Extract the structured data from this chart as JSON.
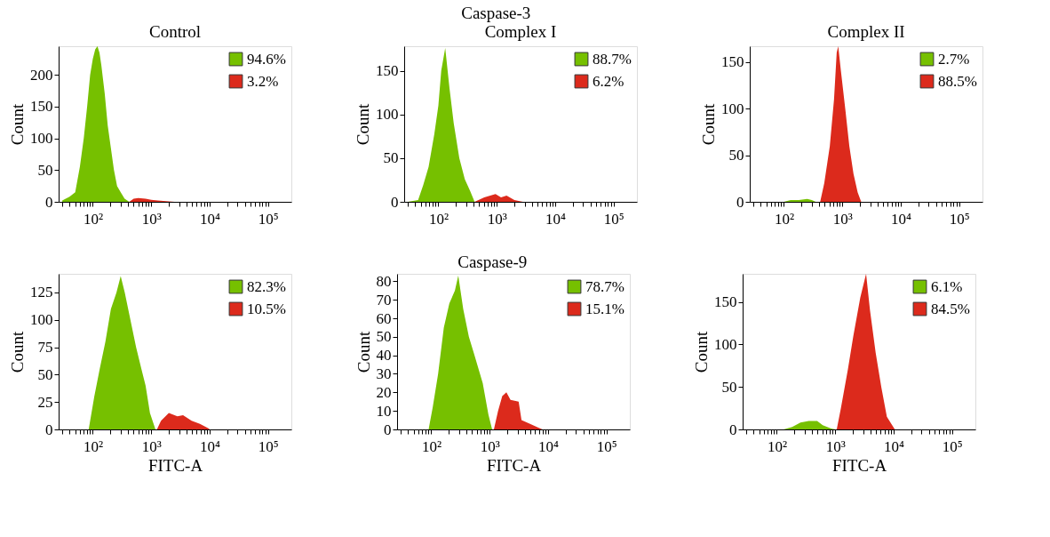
{
  "chart_data": [
    {
      "type": "area",
      "title": "Control",
      "ylabel": "Count",
      "log": "x",
      "legend": "top right",
      "xlim": [
        26,
        250000
      ],
      "ylim": [
        0,
        245
      ],
      "yticks": [
        0,
        50,
        100,
        150,
        200
      ],
      "xticks": [
        {
          "value": 30,
          "label": null
        },
        {
          "value": 40,
          "label": null
        },
        {
          "value": 50,
          "label": null
        },
        {
          "value": 60,
          "label": null
        },
        {
          "value": 70,
          "label": null
        },
        {
          "value": 80,
          "label": null
        },
        {
          "value": 90,
          "label": null
        },
        {
          "value": 100,
          "label": "10²"
        },
        {
          "value": 200,
          "label": null
        },
        {
          "value": 300,
          "label": null
        },
        {
          "value": 400,
          "label": null
        },
        {
          "value": 500,
          "label": null
        },
        {
          "value": 600,
          "label": null
        },
        {
          "value": 700,
          "label": null
        },
        {
          "value": 800,
          "label": null
        },
        {
          "value": 900,
          "label": null
        },
        {
          "value": 1000,
          "label": "10³"
        },
        {
          "value": 2000,
          "label": null
        },
        {
          "value": 3000,
          "label": null
        },
        {
          "value": 4000,
          "label": null
        },
        {
          "value": 5000,
          "label": null
        },
        {
          "value": 6000,
          "label": null
        },
        {
          "value": 7000,
          "label": null
        },
        {
          "value": 8000,
          "label": null
        },
        {
          "value": 9000,
          "label": null
        },
        {
          "value": 10000,
          "label": "10⁴"
        },
        {
          "value": 20000,
          "label": null
        },
        {
          "value": 30000,
          "label": null
        },
        {
          "value": 40000,
          "label": null
        },
        {
          "value": 50000,
          "label": null
        },
        {
          "value": 60000,
          "label": null
        },
        {
          "value": 70000,
          "label": null
        },
        {
          "value": 80000,
          "label": null
        },
        {
          "value": 90000,
          "label": null
        },
        {
          "value": 100000,
          "label": "10⁵"
        }
      ],
      "series": [
        {
          "name": "94.6%",
          "color": "#76c000",
          "x": [
            30,
            40,
            50,
            60,
            70,
            80,
            90,
            100,
            110,
            120,
            130,
            140,
            160,
            180,
            200,
            230,
            260,
            300,
            350,
            420
          ],
          "values": [
            2,
            8,
            15,
            55,
            100,
            150,
            200,
            225,
            240,
            245,
            235,
            215,
            170,
            120,
            90,
            50,
            25,
            15,
            5,
            0
          ]
        },
        {
          "name": "3.2%",
          "color": "#dc2a1c",
          "x": [
            420,
            500,
            600,
            800,
            1000,
            1300,
            1800,
            2500
          ],
          "values": [
            0,
            5,
            6,
            5,
            3,
            2,
            1,
            0
          ]
        }
      ]
    },
    {
      "type": "area",
      "title": "Caspase-3",
      "subtitle": "Complex I",
      "ylabel": "Count",
      "log": "x",
      "legend": "top right",
      "xlim": [
        26,
        250000
      ],
      "ylim": [
        0,
        178
      ],
      "yticks": [
        0,
        50,
        100,
        150
      ],
      "xticks": [
        {
          "value": 30,
          "label": null
        },
        {
          "value": 40,
          "label": null
        },
        {
          "value": 50,
          "label": null
        },
        {
          "value": 60,
          "label": null
        },
        {
          "value": 70,
          "label": null
        },
        {
          "value": 80,
          "label": null
        },
        {
          "value": 90,
          "label": null
        },
        {
          "value": 100,
          "label": "10²"
        },
        {
          "value": 200,
          "label": null
        },
        {
          "value": 300,
          "label": null
        },
        {
          "value": 400,
          "label": null
        },
        {
          "value": 500,
          "label": null
        },
        {
          "value": 600,
          "label": null
        },
        {
          "value": 700,
          "label": null
        },
        {
          "value": 800,
          "label": null
        },
        {
          "value": 900,
          "label": null
        },
        {
          "value": 1000,
          "label": "10³"
        },
        {
          "value": 2000,
          "label": null
        },
        {
          "value": 3000,
          "label": null
        },
        {
          "value": 4000,
          "label": null
        },
        {
          "value": 5000,
          "label": null
        },
        {
          "value": 6000,
          "label": null
        },
        {
          "value": 7000,
          "label": null
        },
        {
          "value": 8000,
          "label": null
        },
        {
          "value": 9000,
          "label": null
        },
        {
          "value": 10000,
          "label": "10⁴"
        },
        {
          "value": 20000,
          "label": null
        },
        {
          "value": 30000,
          "label": null
        },
        {
          "value": 40000,
          "label": null
        },
        {
          "value": 50000,
          "label": null
        },
        {
          "value": 60000,
          "label": null
        },
        {
          "value": 70000,
          "label": null
        },
        {
          "value": 80000,
          "label": null
        },
        {
          "value": 90000,
          "label": null
        },
        {
          "value": 100000,
          "label": "10⁵"
        }
      ],
      "series": [
        {
          "name": "88.7%",
          "color": "#76c000",
          "x": [
            30,
            45,
            55,
            68,
            85,
            100,
            112,
            131,
            155,
            183,
            228,
            283,
            352,
            417
          ],
          "values": [
            0,
            2,
            19,
            40,
            77,
            110,
            150,
            176,
            130,
            90,
            50,
            26,
            12,
            0
          ]
        },
        {
          "name": "6.2%",
          "color": "#dc2a1c",
          "x": [
            417,
            610,
            950,
            1180,
            1470,
            2000,
            2800
          ],
          "values": [
            0,
            5,
            9,
            5,
            7,
            2,
            0
          ]
        }
      ]
    },
    {
      "type": "area",
      "title": "Complex II",
      "ylabel": "Count",
      "log": "x",
      "legend": "top right",
      "xlim": [
        26,
        250000
      ],
      "ylim": [
        0,
        167
      ],
      "yticks": [
        0,
        50,
        100,
        150
      ],
      "xticks": [
        {
          "value": 30,
          "label": null
        },
        {
          "value": 40,
          "label": null
        },
        {
          "value": 50,
          "label": null
        },
        {
          "value": 60,
          "label": null
        },
        {
          "value": 70,
          "label": null
        },
        {
          "value": 80,
          "label": null
        },
        {
          "value": 90,
          "label": null
        },
        {
          "value": 100,
          "label": "10²"
        },
        {
          "value": 200,
          "label": null
        },
        {
          "value": 300,
          "label": null
        },
        {
          "value": 400,
          "label": null
        },
        {
          "value": 500,
          "label": null
        },
        {
          "value": 600,
          "label": null
        },
        {
          "value": 700,
          "label": null
        },
        {
          "value": 800,
          "label": null
        },
        {
          "value": 900,
          "label": null
        },
        {
          "value": 1000,
          "label": "10³"
        },
        {
          "value": 2000,
          "label": null
        },
        {
          "value": 3000,
          "label": null
        },
        {
          "value": 4000,
          "label": null
        },
        {
          "value": 5000,
          "label": null
        },
        {
          "value": 6000,
          "label": null
        },
        {
          "value": 7000,
          "label": null
        },
        {
          "value": 8000,
          "label": null
        },
        {
          "value": 9000,
          "label": null
        },
        {
          "value": 10000,
          "label": "10⁴"
        },
        {
          "value": 20000,
          "label": null
        },
        {
          "value": 30000,
          "label": null
        },
        {
          "value": 40000,
          "label": null
        },
        {
          "value": 50000,
          "label": null
        },
        {
          "value": 60000,
          "label": null
        },
        {
          "value": 70000,
          "label": null
        },
        {
          "value": 80000,
          "label": null
        },
        {
          "value": 90000,
          "label": null
        },
        {
          "value": 100000,
          "label": "10⁵"
        }
      ],
      "series": [
        {
          "name": "2.7%",
          "color": "#76c000",
          "x": [
            100,
            130,
            180,
            250,
            300,
            350
          ],
          "values": [
            0,
            2,
            2,
            3,
            2,
            0
          ]
        },
        {
          "name": "88.5%",
          "color": "#dc2a1c",
          "x": [
            417,
            490,
            610,
            720,
            800,
            850,
            946,
            1120,
            1315,
            1550,
            1830,
            2100
          ],
          "values": [
            0,
            20,
            60,
            110,
            160,
            167,
            140,
            100,
            60,
            30,
            10,
            0
          ]
        }
      ]
    },
    {
      "type": "area",
      "ylabel": "Count",
      "xlabel": "FITC-A",
      "log": "x",
      "legend": "top right",
      "xlim": [
        26,
        250000
      ],
      "ylim": [
        0,
        142
      ],
      "yticks": [
        0,
        25,
        50,
        75,
        100,
        125
      ],
      "xticks": [
        {
          "value": 30,
          "label": null
        },
        {
          "value": 40,
          "label": null
        },
        {
          "value": 50,
          "label": null
        },
        {
          "value": 60,
          "label": null
        },
        {
          "value": 70,
          "label": null
        },
        {
          "value": 80,
          "label": null
        },
        {
          "value": 90,
          "label": null
        },
        {
          "value": 100,
          "label": "10²"
        },
        {
          "value": 200,
          "label": null
        },
        {
          "value": 300,
          "label": null
        },
        {
          "value": 400,
          "label": null
        },
        {
          "value": 500,
          "label": null
        },
        {
          "value": 600,
          "label": null
        },
        {
          "value": 700,
          "label": null
        },
        {
          "value": 800,
          "label": null
        },
        {
          "value": 900,
          "label": null
        },
        {
          "value": 1000,
          "label": "10³"
        },
        {
          "value": 2000,
          "label": null
        },
        {
          "value": 3000,
          "label": null
        },
        {
          "value": 4000,
          "label": null
        },
        {
          "value": 5000,
          "label": null
        },
        {
          "value": 6000,
          "label": null
        },
        {
          "value": 7000,
          "label": null
        },
        {
          "value": 8000,
          "label": null
        },
        {
          "value": 9000,
          "label": null
        },
        {
          "value": 10000,
          "label": "10⁴"
        },
        {
          "value": 20000,
          "label": null
        },
        {
          "value": 30000,
          "label": null
        },
        {
          "value": 40000,
          "label": null
        },
        {
          "value": 50000,
          "label": null
        },
        {
          "value": 60000,
          "label": null
        },
        {
          "value": 70000,
          "label": null
        },
        {
          "value": 80000,
          "label": null
        },
        {
          "value": 90000,
          "label": null
        },
        {
          "value": 100000,
          "label": "10⁵"
        }
      ],
      "series": [
        {
          "name": "82.3%",
          "color": "#76c000",
          "x": [
            85,
            106,
            131,
            164,
            204,
            254,
            300,
            352,
            440,
            550,
            680,
            800,
            950,
            1180
          ],
          "values": [
            0,
            30,
            55,
            80,
            110,
            125,
            140,
            125,
            100,
            75,
            55,
            40,
            15,
            0
          ]
        },
        {
          "name": "10.5%",
          "color": "#dc2a1c",
          "x": [
            1250,
            1470,
            2000,
            2800,
            3500,
            4900,
            6800,
            9500,
            10000
          ],
          "values": [
            0,
            8,
            15,
            12,
            13,
            8,
            5,
            1,
            0
          ]
        }
      ]
    },
    {
      "type": "area",
      "title": "Caspase-9",
      "ylabel": "Count",
      "xlabel": "FITC-A",
      "log": "x",
      "legend": "top right",
      "xlim": [
        26,
        250000
      ],
      "ylim": [
        0,
        84
      ],
      "yticks": [
        0,
        10,
        20,
        30,
        40,
        50,
        60,
        70,
        80
      ],
      "xticks": [
        {
          "value": 30,
          "label": null
        },
        {
          "value": 40,
          "label": null
        },
        {
          "value": 50,
          "label": null
        },
        {
          "value": 60,
          "label": null
        },
        {
          "value": 70,
          "label": null
        },
        {
          "value": 80,
          "label": null
        },
        {
          "value": 90,
          "label": null
        },
        {
          "value": 100,
          "label": "10²"
        },
        {
          "value": 200,
          "label": null
        },
        {
          "value": 300,
          "label": null
        },
        {
          "value": 400,
          "label": null
        },
        {
          "value": 500,
          "label": null
        },
        {
          "value": 600,
          "label": null
        },
        {
          "value": 700,
          "label": null
        },
        {
          "value": 800,
          "label": null
        },
        {
          "value": 900,
          "label": null
        },
        {
          "value": 1000,
          "label": "10³"
        },
        {
          "value": 2000,
          "label": null
        },
        {
          "value": 3000,
          "label": null
        },
        {
          "value": 4000,
          "label": null
        },
        {
          "value": 5000,
          "label": null
        },
        {
          "value": 6000,
          "label": null
        },
        {
          "value": 7000,
          "label": null
        },
        {
          "value": 8000,
          "label": null
        },
        {
          "value": 9000,
          "label": null
        },
        {
          "value": 10000,
          "label": "10⁴"
        },
        {
          "value": 20000,
          "label": null
        },
        {
          "value": 30000,
          "label": null
        },
        {
          "value": 40000,
          "label": null
        },
        {
          "value": 50000,
          "label": null
        },
        {
          "value": 60000,
          "label": null
        },
        {
          "value": 70000,
          "label": null
        },
        {
          "value": 80000,
          "label": null
        },
        {
          "value": 90000,
          "label": null
        },
        {
          "value": 100000,
          "label": "10⁵"
        }
      ],
      "series": [
        {
          "name": "78.7%",
          "color": "#76c000",
          "x": [
            90,
            106,
            131,
            164,
            204,
            254,
            290,
            352,
            440,
            550,
            760,
            950,
            1100
          ],
          "values": [
            0,
            12,
            30,
            55,
            68,
            75,
            83,
            65,
            50,
            40,
            25,
            8,
            0
          ]
        },
        {
          "name": "15.1%",
          "color": "#dc2a1c",
          "x": [
            1180,
            1390,
            1640,
            1930,
            2270,
            3130,
            3500,
            4900,
            6800,
            8000
          ],
          "values": [
            0,
            10,
            18,
            20,
            16,
            15,
            5,
            3,
            1,
            0
          ]
        }
      ]
    },
    {
      "type": "area",
      "ylabel": "Count",
      "xlabel": "FITC-A",
      "log": "x",
      "legend": "top right",
      "xlim": [
        26,
        250000
      ],
      "ylim": [
        0,
        183
      ],
      "yticks": [
        0,
        50,
        100,
        150
      ],
      "xticks": [
        {
          "value": 30,
          "label": null
        },
        {
          "value": 40,
          "label": null
        },
        {
          "value": 50,
          "label": null
        },
        {
          "value": 60,
          "label": null
        },
        {
          "value": 70,
          "label": null
        },
        {
          "value": 80,
          "label": null
        },
        {
          "value": 90,
          "label": null
        },
        {
          "value": 100,
          "label": "10²"
        },
        {
          "value": 200,
          "label": null
        },
        {
          "value": 300,
          "label": null
        },
        {
          "value": 400,
          "label": null
        },
        {
          "value": 500,
          "label": null
        },
        {
          "value": 600,
          "label": null
        },
        {
          "value": 700,
          "label": null
        },
        {
          "value": 800,
          "label": null
        },
        {
          "value": 900,
          "label": null
        },
        {
          "value": 1000,
          "label": "10³"
        },
        {
          "value": 2000,
          "label": null
        },
        {
          "value": 3000,
          "label": null
        },
        {
          "value": 4000,
          "label": null
        },
        {
          "value": 5000,
          "label": null
        },
        {
          "value": 6000,
          "label": null
        },
        {
          "value": 7000,
          "label": null
        },
        {
          "value": 8000,
          "label": null
        },
        {
          "value": 9000,
          "label": null
        },
        {
          "value": 10000,
          "label": "10⁴"
        },
        {
          "value": 20000,
          "label": null
        },
        {
          "value": 30000,
          "label": null
        },
        {
          "value": 40000,
          "label": null
        },
        {
          "value": 50000,
          "label": null
        },
        {
          "value": 60000,
          "label": null
        },
        {
          "value": 70000,
          "label": null
        },
        {
          "value": 80000,
          "label": null
        },
        {
          "value": 90000,
          "label": null
        },
        {
          "value": 100000,
          "label": "10⁵"
        }
      ],
      "series": [
        {
          "name": "6.1%",
          "color": "#76c000",
          "x": [
            131,
            183,
            254,
            352,
            490,
            610,
            850,
            1000
          ],
          "values": [
            0,
            3,
            8,
            10,
            10,
            5,
            1,
            0
          ]
        },
        {
          "name": "84.5%",
          "color": "#dc2a1c",
          "x": [
            1060,
            1250,
            1640,
            2040,
            2680,
            3370,
            3930,
            4920,
            6130,
            7640,
            10000,
            10500
          ],
          "values": [
            0,
            25,
            70,
            110,
            155,
            183,
            140,
            90,
            50,
            15,
            2,
            0
          ]
        }
      ]
    }
  ]
}
